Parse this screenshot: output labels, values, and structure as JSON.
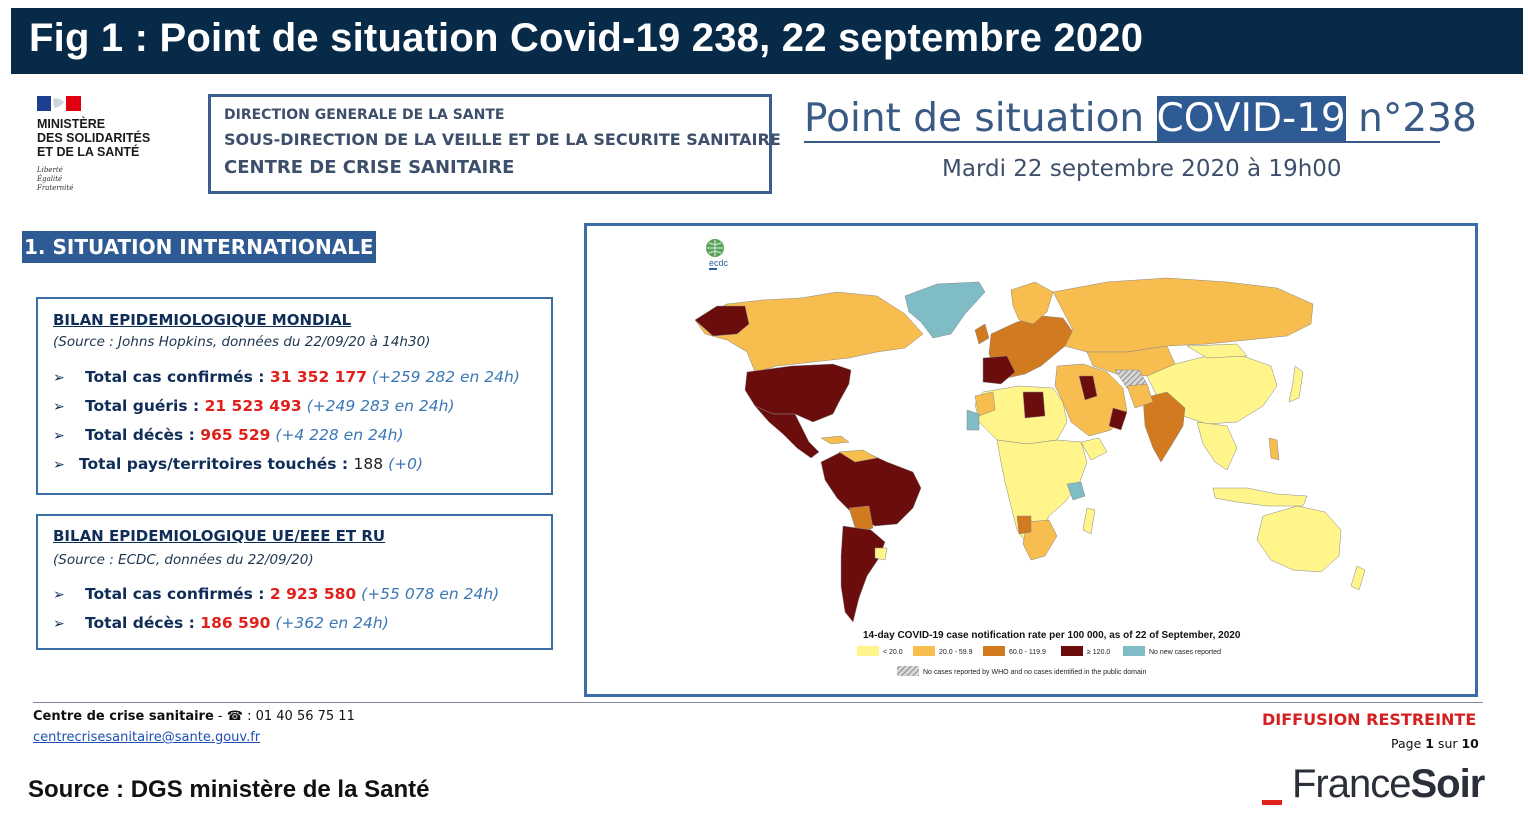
{
  "figure_title": "Fig 1 : Point de situation Covid-19 238, 22 septembre 2020",
  "ministry": {
    "lines": [
      "MINISTÈRE",
      "DES SOLIDARITÉS",
      "ET DE LA SANTÉ"
    ],
    "motto": [
      "Liberté",
      "Égalité",
      "Fraternité"
    ]
  },
  "dgs_box": {
    "line1": "DIRECTION GENERALE DE LA SANTE",
    "line2": "SOUS-DIRECTION DE LA VEILLE ET DE LA SECURITE SANITAIRE",
    "line3": "CENTRE DE CRISE SANITAIRE"
  },
  "point": {
    "title_pre": "Point de situation ",
    "title_highlight": "COVID-19",
    "title_post": " n°238",
    "date": "Mardi 22 septembre 2020 à 19h00"
  },
  "section_heading": "1. SITUATION INTERNATIONALE",
  "bilan_mondial": {
    "title": "BILAN EPIDEMIOLOGIQUE MONDIAL",
    "source": "(Source : Johns Hopkins, données du 22/09/20 à 14h30)",
    "rows": [
      {
        "arrow": "➢",
        "label": "Total cas confirmés : ",
        "value": "31 352 177",
        "delta": "(+259 282 en 24h)"
      },
      {
        "arrow": "➢",
        "label": "Total guéris : ",
        "value": "21 523 493",
        "delta": "(+249 283 en 24h)"
      },
      {
        "arrow": "➢",
        "label": "Total décès : ",
        "value": "965 529",
        "delta": "(+4 228 en 24h)"
      },
      {
        "arrow": "➢",
        "label": "Total pays/territoires touchés : ",
        "value": "188",
        "delta": "(+0)"
      }
    ]
  },
  "bilan_ue": {
    "title": "BILAN EPIDEMIOLOGIQUE UE/EEE ET RU",
    "source": "(Source : ECDC, données du 22/09/20)",
    "rows": [
      {
        "arrow": "➢",
        "label": "Total cas confirmés : ",
        "value": "2 923 580",
        "delta": "(+55 078 en 24h)"
      },
      {
        "arrow": "➢",
        "label": "Total décès : ",
        "value": "186 590",
        "delta": "(+362 en 24h)"
      }
    ]
  },
  "map": {
    "logo_text": "ecdc",
    "caption": "14-day COVID-19 case notification rate per 100 000, as of 22 of September, 2020",
    "legend": [
      {
        "label": "< 20.0",
        "color": "#fff58a"
      },
      {
        "label": "20.0 - 59.9",
        "color": "#f7bd4e"
      },
      {
        "label": "60.0 - 119.9",
        "color": "#d27a1f"
      },
      {
        "label": "≥ 120.0",
        "color": "#6b0d0d"
      },
      {
        "label": "No new cases reported",
        "color": "#7fbcc6"
      }
    ],
    "legend_hatched": "No cases reported by WHO and no cases identified in the public domain"
  },
  "footer": {
    "contact_label": "Centre de crise sanitaire",
    "contact_sep": " - ",
    "phone_icon": "☎",
    "phone": " : 01 40 56 75 11",
    "email": "centrecrisesanitaire@sante.gouv.fr",
    "diffusion": "DIFFUSION RESTREINTE",
    "page_pre": "Page ",
    "page_num": "1",
    "page_mid": " sur ",
    "page_total": "10"
  },
  "source_line": "Source : DGS ministère de la Santé",
  "brand": {
    "part1": "France",
    "part2": "Soir"
  }
}
